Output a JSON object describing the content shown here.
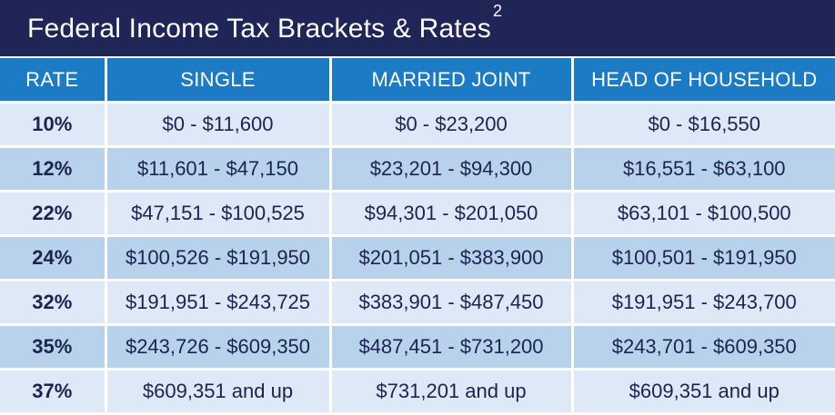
{
  "title": {
    "text": "Federal Income Tax Brackets & Rates",
    "superscript": "2"
  },
  "colors": {
    "title_background": "#1f2556",
    "header_background": "#1b7bc4",
    "row_light": "#dde9f6",
    "row_dark": "#b9d2ec",
    "text": "#1c2350"
  },
  "table": {
    "headers": {
      "rate": "RATE",
      "single": "SINGLE",
      "married_joint": "MARRIED JOINT",
      "head_of_household": "HEAD OF HOUSEHOLD"
    },
    "rows": [
      {
        "rate": "10%",
        "single": "$0 - $11,600",
        "married_joint": "$0 - $23,200",
        "head_of_household": "$0 - $16,550"
      },
      {
        "rate": "12%",
        "single": "$11,601 - $47,150",
        "married_joint": "$23,201 - $94,300",
        "head_of_household": "$16,551 - $63,100"
      },
      {
        "rate": "22%",
        "single": "$47,151 - $100,525",
        "married_joint": "$94,301 - $201,050",
        "head_of_household": "$63,101 - $100,500"
      },
      {
        "rate": "24%",
        "single": "$100,526 - $191,950",
        "married_joint": "$201,051 - $383,900",
        "head_of_household": "$100,501 - $191,950"
      },
      {
        "rate": "32%",
        "single": "$191,951 - $243,725",
        "married_joint": "$383,901 - $487,450",
        "head_of_household": "$191,951 - $243,700"
      },
      {
        "rate": "35%",
        "single": "$243,726 - $609,350",
        "married_joint": "$487,451 - $731,200",
        "head_of_household": "$243,701 - $609,350"
      },
      {
        "rate": "37%",
        "single": "$609,351 and up",
        "married_joint": "$731,201 and up",
        "head_of_household": "$609,351 and up"
      }
    ]
  }
}
